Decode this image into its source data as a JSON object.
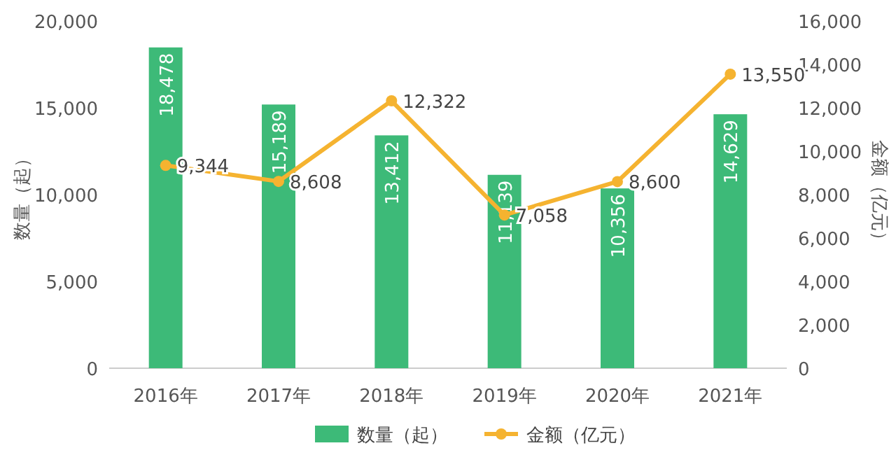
{
  "chart_data": {
    "type": "bar",
    "categories": [
      "2016年",
      "2017年",
      "2018年",
      "2019年",
      "2020年",
      "2021年"
    ],
    "series": [
      {
        "name": "数量（起）",
        "color": "#3dba78",
        "values": [
          18478,
          15189,
          13412,
          11139,
          10356,
          14629
        ],
        "value_labels": [
          "18,478",
          "15,189",
          "13,412",
          "11,139",
          "10,356",
          "14,629"
        ]
      },
      {
        "name": "金额（亿元）",
        "type": "line",
        "axis": "y2",
        "color": "#f5b330",
        "values": [
          9344,
          8608,
          12322,
          7058,
          8600,
          13550
        ],
        "value_labels": [
          "9,344",
          "8,608",
          "12,322",
          "7,058",
          "8,600",
          "13,550"
        ]
      }
    ],
    "ylabel": "数量（起）",
    "y2label": "金额（亿元）",
    "ylim": [
      0,
      20000
    ],
    "yticks": [
      {
        "value": 0,
        "label": "0"
      },
      {
        "value": 5000,
        "label": "5,000"
      },
      {
        "value": 10000,
        "label": "10,000"
      },
      {
        "value": 15000,
        "label": "15,000"
      },
      {
        "value": 20000,
        "label": "20,000"
      }
    ],
    "y2lim": [
      0,
      16000
    ],
    "y2ticks": [
      {
        "value": 0,
        "label": "0"
      },
      {
        "value": 2000,
        "label": "2,000"
      },
      {
        "value": 4000,
        "label": "4,000"
      },
      {
        "value": 6000,
        "label": "6,000"
      },
      {
        "value": 8000,
        "label": "8,000"
      },
      {
        "value": 10000,
        "label": "10,000"
      },
      {
        "value": 12000,
        "label": "12,000"
      },
      {
        "value": 14000,
        "label": "14,000"
      },
      {
        "value": 16000,
        "label": "16,000"
      }
    ],
    "marker": "circle",
    "grid": false,
    "legend": "bottom"
  }
}
